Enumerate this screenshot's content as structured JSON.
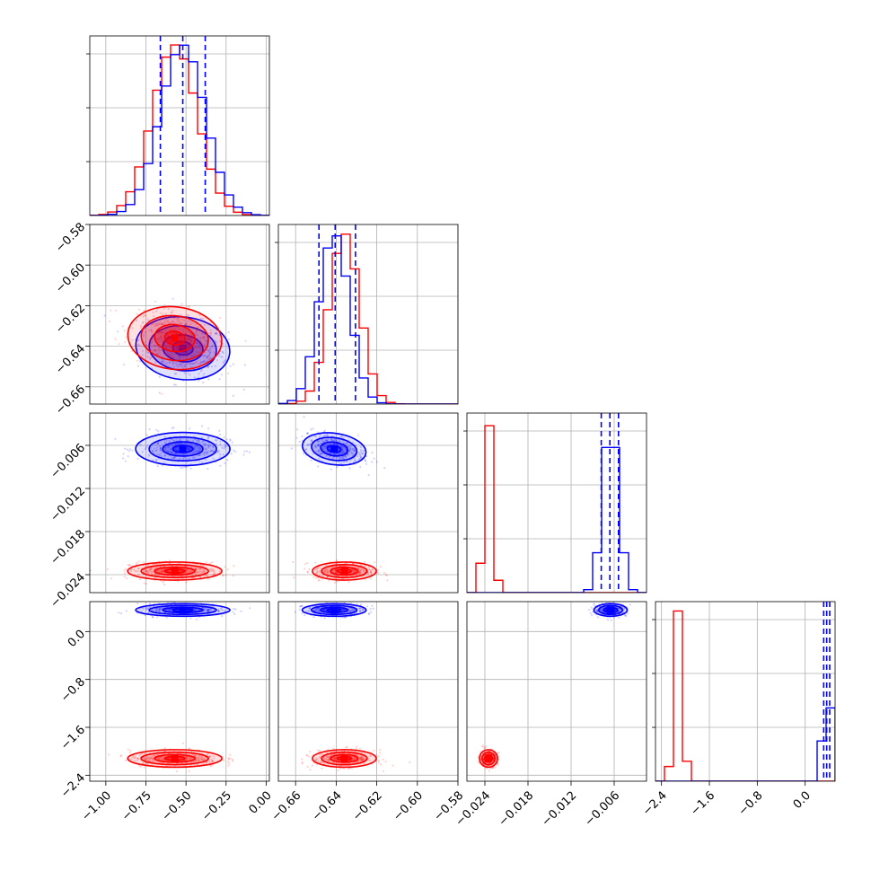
{
  "chart_data": {
    "type": "corner",
    "colors": {
      "model_a": "#0000ff",
      "model_b": "#ff0000",
      "grid": "#b0b0b0",
      "frame": "#000000"
    },
    "grid": true,
    "parameters": [
      {
        "range": [
          -1.1,
          0.02
        ],
        "ticks": [
          -1.0,
          -0.75,
          -0.5,
          -0.25,
          0.0
        ],
        "tick_labels": [
          "−1.00",
          "−0.75",
          "−0.50",
          "−0.25",
          "0.00"
        ],
        "blue": {
          "mean": -0.52,
          "sd": 0.14
        },
        "red": {
          "mean": -0.57,
          "sd": 0.14
        },
        "blue_quantiles": [
          -0.66,
          -0.52,
          -0.38
        ]
      },
      {
        "range": [
          -0.6685,
          -0.58
        ],
        "ticks": [
          -0.66,
          -0.64,
          -0.62,
          -0.6,
          -0.58
        ],
        "tick_labels": [
          "−0.66",
          "−0.64",
          "−0.62",
          "−0.60",
          "−0.58"
        ],
        "blue": {
          "mean": -0.641,
          "sd": 0.0075
        },
        "red": {
          "mean": -0.636,
          "sd": 0.0075
        },
        "blue_quantiles": [
          -0.6485,
          -0.6405,
          -0.6305
        ]
      },
      {
        "range": [
          -0.0265,
          -0.0015
        ],
        "ticks": [
          -0.024,
          -0.018,
          -0.012,
          -0.006
        ],
        "tick_labels": [
          "−0.024",
          "−0.018",
          "−0.012",
          "−0.006"
        ],
        "blue": {
          "mean": -0.0065,
          "sd": 0.0011
        },
        "red": {
          "mean": -0.0235,
          "sd": 0.0006
        },
        "blue_quantiles": [
          -0.0078,
          -0.0066,
          -0.0054
        ]
      },
      {
        "range": [
          -2.5,
          0.5
        ],
        "ticks": [
          -2.4,
          -1.6,
          -0.8,
          0.0
        ],
        "tick_labels": [
          "−2.4",
          "−1.6",
          "−0.8",
          "0.0"
        ],
        "blue": {
          "mean": 0.36,
          "sd": 0.05
        },
        "red": {
          "mean": -2.12,
          "sd": 0.07
        },
        "blue_quantiles": [
          0.31,
          0.36,
          0.41
        ]
      }
    ]
  }
}
